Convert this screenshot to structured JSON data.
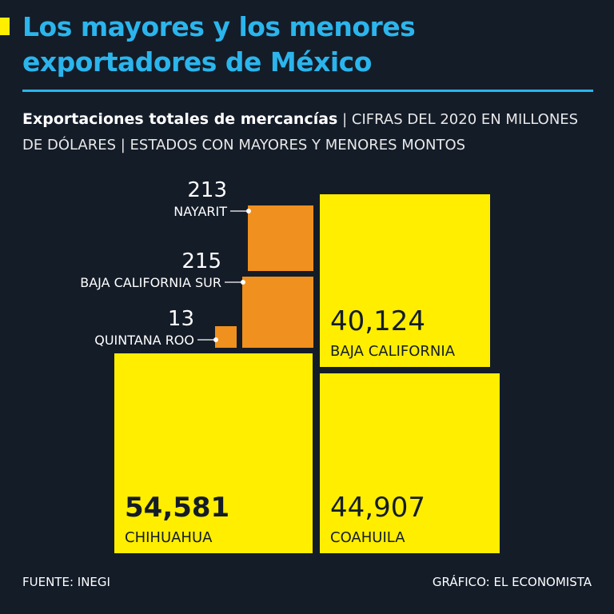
{
  "header": {
    "title_line1": "Los mayores y los menores",
    "title_line2": "exportadores de México",
    "subtitle_strong": "Exportaciones totales de mercancías",
    "subtitle_light": " | CIFRAS DEL 2020 EN MILLONES DE DÓLARES | ESTADOS CON MAYORES Y MENORES MONTOS"
  },
  "colors": {
    "background": "#141c28",
    "title": "#2bb5ec",
    "large": "#ffee00",
    "small": "#f0901e"
  },
  "chart_data": {
    "type": "treemap",
    "title": "Los mayores y los menores exportadores de México",
    "subtitle": "Exportaciones totales de mercancías | CIFRAS DEL 2020 EN MILLONES DE DÓLARES | ESTADOS CON MAYORES Y MENORES MONTOS",
    "items": [
      {
        "name": "CHIHUAHUA",
        "value": 54581,
        "label": "54,581",
        "group": "mayores",
        "emphasis": true
      },
      {
        "name": "COAHUILA",
        "value": 44907,
        "label": "44,907",
        "group": "mayores"
      },
      {
        "name": "BAJA CALIFORNIA",
        "value": 40124,
        "label": "40,124",
        "group": "mayores"
      },
      {
        "name": "NAYARIT",
        "value": 213,
        "label": "213",
        "group": "menores"
      },
      {
        "name": "BAJA CALIFORNIA SUR",
        "value": 215,
        "label": "215",
        "group": "menores"
      },
      {
        "name": "QUINTANA ROO",
        "value": 13,
        "label": "13",
        "group": "menores"
      }
    ]
  },
  "footer": {
    "source": "FUENTE: INEGI",
    "credit": "GRÁFICO: EL ECONOMISTA"
  }
}
